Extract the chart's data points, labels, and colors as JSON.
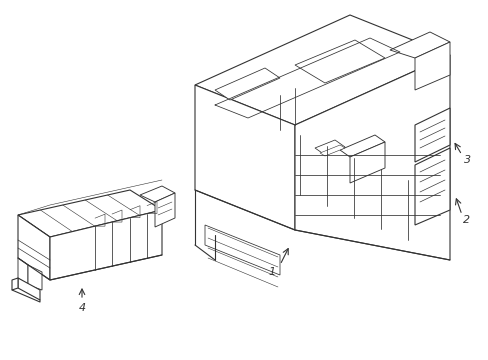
{
  "bg_color": "#ffffff",
  "line_color": "#333333",
  "line_width": 0.8,
  "label_1": "1",
  "label_2": "2",
  "label_3": "3",
  "label_4": "4",
  "title": "",
  "figsize": [
    4.89,
    3.6
  ],
  "dpi": 100
}
